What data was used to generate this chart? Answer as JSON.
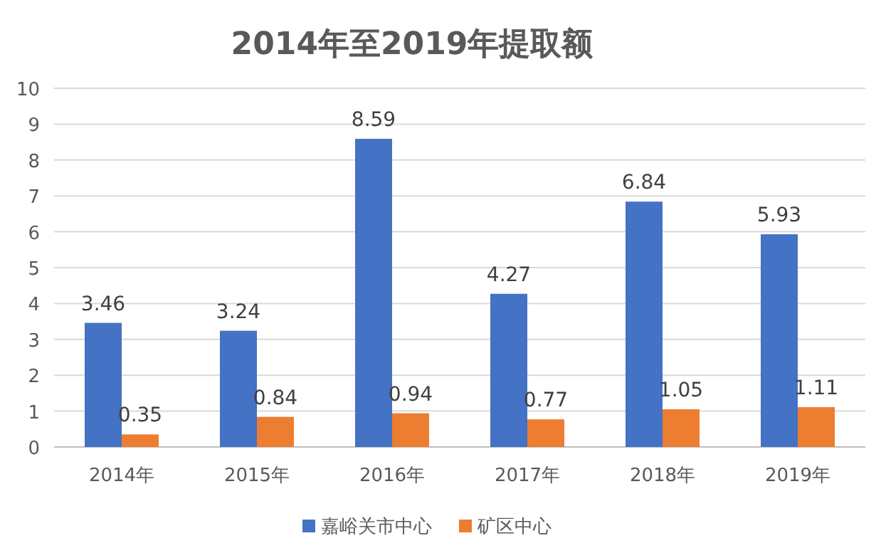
{
  "chart_data": {
    "type": "bar",
    "title": "2014年至2019年提取额",
    "categories": [
      "2014年",
      "2015年",
      "2016年",
      "2017年",
      "2018年",
      "2019年"
    ],
    "series": [
      {
        "name": "嘉峪关市中心",
        "color": "#4472c4",
        "values": [
          3.46,
          3.24,
          8.59,
          4.27,
          6.84,
          5.93
        ]
      },
      {
        "name": "矿区中心",
        "color": "#ed7d31",
        "values": [
          0.35,
          0.84,
          0.94,
          0.77,
          1.05,
          1.11
        ]
      }
    ],
    "ylim": [
      0,
      10
    ],
    "yticks": [
      0,
      1,
      2,
      3,
      4,
      5,
      6,
      7,
      8,
      9,
      10
    ],
    "grid": "y",
    "legend": "bottom",
    "data_labels": true
  }
}
